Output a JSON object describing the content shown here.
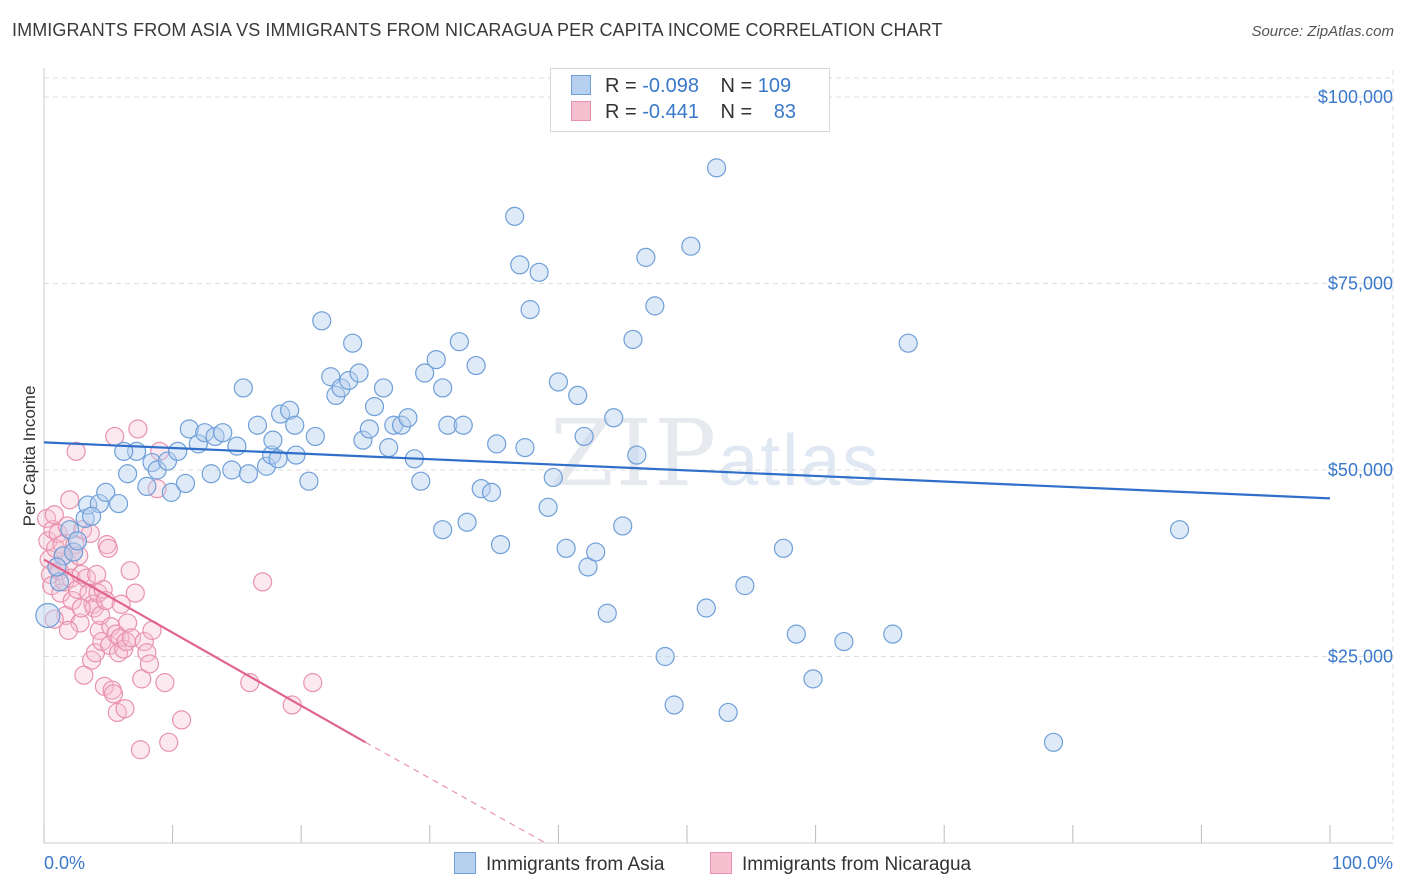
{
  "title": "IMMIGRANTS FROM ASIA VS IMMIGRANTS FROM NICARAGUA PER CAPITA INCOME CORRELATION CHART",
  "source": "Source: ZipAtlas.com",
  "watermark": {
    "zip": "ZIP",
    "atlas": "atlas"
  },
  "legend": {
    "asia": {
      "r_label": "R = ",
      "r_value": "-0.098",
      "n_label": "N = ",
      "n_value": "109"
    },
    "nicaragua": {
      "r_label": "R = ",
      "r_value": "-0.441",
      "n_label": "N = ",
      "n_value": "83"
    }
  },
  "bottom_legend": {
    "asia": "Immigrants from Asia",
    "nicaragua": "Immigrants from Nicaragua"
  },
  "colors": {
    "asia_fill": "#b7d0f0",
    "asia_stroke": "#6f9fd8",
    "asia_line": "#2f6fc9",
    "nic_fill": "#f6c0d0",
    "nic_stroke": "#e892ae",
    "nic_line": "#e0648e",
    "tick_text": "#3a78c9",
    "grid": "#dddddd"
  },
  "chart_data": {
    "type": "scatter",
    "ylabel": "Per Capita Income",
    "xlim": [
      0,
      100
    ],
    "ylim": [
      0,
      105000
    ],
    "x_tick_labels": [
      "0.0%",
      "100.0%"
    ],
    "y_ticks": [
      25000,
      50000,
      75000,
      100000
    ],
    "y_tick_labels": [
      "$25,000",
      "$50,000",
      "$75,000",
      "$100,000"
    ],
    "grid": true,
    "legend_placement": "top-center",
    "series": [
      {
        "name": "Immigrants from Asia",
        "r": -0.098,
        "n": 109,
        "trend": {
          "x": [
            0,
            100
          ],
          "y": [
            53700,
            46200
          ]
        },
        "points": [
          [
            0.3,
            30500
          ],
          [
            1.2,
            35000
          ],
          [
            1.5,
            38500
          ],
          [
            2.0,
            42000
          ],
          [
            2.3,
            39000
          ],
          [
            3.2,
            43500
          ],
          [
            3.4,
            45300
          ],
          [
            4.3,
            45500
          ],
          [
            4.8,
            47000
          ],
          [
            5.8,
            45500
          ],
          [
            6.5,
            49500
          ],
          [
            7.2,
            52500
          ],
          [
            8.0,
            47800
          ],
          [
            8.4,
            51000
          ],
          [
            8.8,
            50000
          ],
          [
            9.6,
            51200
          ],
          [
            9.9,
            47000
          ],
          [
            10.4,
            52500
          ],
          [
            11.0,
            48200
          ],
          [
            11.3,
            55500
          ],
          [
            12.0,
            53500
          ],
          [
            12.5,
            55000
          ],
          [
            13.0,
            49500
          ],
          [
            13.3,
            54500
          ],
          [
            13.9,
            55000
          ],
          [
            14.6,
            50000
          ],
          [
            15.0,
            53200
          ],
          [
            15.5,
            61000
          ],
          [
            15.9,
            49500
          ],
          [
            16.6,
            56000
          ],
          [
            17.3,
            50500
          ],
          [
            17.7,
            52000
          ],
          [
            17.8,
            54000
          ],
          [
            18.4,
            57500
          ],
          [
            19.1,
            58000
          ],
          [
            19.5,
            56000
          ],
          [
            19.6,
            52000
          ],
          [
            20.6,
            48500
          ],
          [
            21.1,
            54500
          ],
          [
            21.6,
            70000
          ],
          [
            22.3,
            62500
          ],
          [
            22.7,
            60000
          ],
          [
            23.1,
            61000
          ],
          [
            23.7,
            62000
          ],
          [
            24.0,
            67000
          ],
          [
            24.5,
            63000
          ],
          [
            24.8,
            54000
          ],
          [
            25.3,
            55500
          ],
          [
            25.7,
            58500
          ],
          [
            26.4,
            61000
          ],
          [
            26.8,
            53000
          ],
          [
            27.2,
            56000
          ],
          [
            27.8,
            56000
          ],
          [
            28.3,
            57000
          ],
          [
            28.8,
            51500
          ],
          [
            29.3,
            48500
          ],
          [
            29.6,
            63000
          ],
          [
            30.5,
            64800
          ],
          [
            31.0,
            61000
          ],
          [
            31.4,
            56000
          ],
          [
            31.0,
            42000
          ],
          [
            32.3,
            67200
          ],
          [
            32.6,
            56000
          ],
          [
            32.9,
            43000
          ],
          [
            33.6,
            64000
          ],
          [
            34.0,
            47500
          ],
          [
            34.8,
            47000
          ],
          [
            35.2,
            53500
          ],
          [
            35.5,
            40000
          ],
          [
            36.6,
            84000
          ],
          [
            37.0,
            77500
          ],
          [
            37.4,
            53000
          ],
          [
            37.8,
            71500
          ],
          [
            38.5,
            76500
          ],
          [
            39.2,
            45000
          ],
          [
            39.6,
            49000
          ],
          [
            40.0,
            61800
          ],
          [
            40.6,
            39500
          ],
          [
            41.5,
            60000
          ],
          [
            42.0,
            54500
          ],
          [
            42.3,
            37000
          ],
          [
            42.9,
            39000
          ],
          [
            43.8,
            30800
          ],
          [
            44.3,
            57000
          ],
          [
            45.0,
            42500
          ],
          [
            45.8,
            67500
          ],
          [
            46.1,
            52000
          ],
          [
            46.8,
            78500
          ],
          [
            47.5,
            72000
          ],
          [
            48.3,
            25000
          ],
          [
            49.0,
            18500
          ],
          [
            50.3,
            80000
          ],
          [
            51.5,
            31500
          ],
          [
            52.3,
            90500
          ],
          [
            53.2,
            17500
          ],
          [
            54.5,
            34500
          ],
          [
            57.5,
            39500
          ],
          [
            58.5,
            28000
          ],
          [
            59.8,
            22000
          ],
          [
            62.2,
            27000
          ],
          [
            66.0,
            28000
          ],
          [
            67.2,
            67000
          ],
          [
            78.5,
            13500
          ],
          [
            88.3,
            42000
          ],
          [
            1.0,
            37000
          ],
          [
            2.6,
            40500
          ],
          [
            3.7,
            43800
          ],
          [
            6.2,
            52500
          ],
          [
            18.2,
            51500
          ]
        ]
      },
      {
        "name": "Immigrants from Nicaragua",
        "r": -0.441,
        "n": 83,
        "trend": {
          "x": [
            0,
            25
          ],
          "y": [
            38000,
            13500
          ]
        },
        "trend_dashed": {
          "x": [
            25,
            39
          ],
          "y": [
            13500,
            0
          ]
        },
        "points": [
          [
            0.2,
            43500
          ],
          [
            0.3,
            40500
          ],
          [
            0.4,
            38000
          ],
          [
            0.5,
            36000
          ],
          [
            0.6,
            34500
          ],
          [
            0.7,
            42000
          ],
          [
            0.8,
            44000
          ],
          [
            0.9,
            39500
          ],
          [
            1.0,
            37000
          ],
          [
            1.1,
            41500
          ],
          [
            1.2,
            36500
          ],
          [
            1.3,
            33500
          ],
          [
            1.4,
            40000
          ],
          [
            1.5,
            38500
          ],
          [
            1.6,
            35000
          ],
          [
            1.7,
            30500
          ],
          [
            1.8,
            42500
          ],
          [
            1.9,
            37500
          ],
          [
            2.0,
            46000
          ],
          [
            2.1,
            35500
          ],
          [
            2.2,
            32500
          ],
          [
            2.3,
            39000
          ],
          [
            2.4,
            40000
          ],
          [
            2.5,
            52500
          ],
          [
            2.6,
            34000
          ],
          [
            2.7,
            38500
          ],
          [
            2.8,
            29500
          ],
          [
            2.9,
            36000
          ],
          [
            3.0,
            42000
          ],
          [
            3.1,
            22500
          ],
          [
            3.3,
            35500
          ],
          [
            3.5,
            33500
          ],
          [
            3.7,
            24500
          ],
          [
            3.8,
            32000
          ],
          [
            3.9,
            31500
          ],
          [
            4.0,
            25500
          ],
          [
            4.2,
            33500
          ],
          [
            4.3,
            28500
          ],
          [
            4.4,
            30500
          ],
          [
            4.5,
            27000
          ],
          [
            4.6,
            34000
          ],
          [
            4.7,
            21000
          ],
          [
            4.8,
            32500
          ],
          [
            4.9,
            40000
          ],
          [
            5.0,
            39500
          ],
          [
            5.1,
            26500
          ],
          [
            5.2,
            29000
          ],
          [
            5.3,
            20500
          ],
          [
            5.4,
            20000
          ],
          [
            5.5,
            54500
          ],
          [
            5.6,
            28000
          ],
          [
            5.7,
            17500
          ],
          [
            5.8,
            25500
          ],
          [
            5.9,
            27500
          ],
          [
            6.0,
            32000
          ],
          [
            6.2,
            26000
          ],
          [
            6.3,
            18000
          ],
          [
            6.4,
            27000
          ],
          [
            6.5,
            29500
          ],
          [
            6.7,
            36500
          ],
          [
            6.8,
            27500
          ],
          [
            7.1,
            33500
          ],
          [
            7.3,
            55500
          ],
          [
            7.5,
            12500
          ],
          [
            7.6,
            22000
          ],
          [
            7.8,
            27000
          ],
          [
            8.0,
            25500
          ],
          [
            8.2,
            24000
          ],
          [
            8.4,
            28500
          ],
          [
            8.8,
            47500
          ],
          [
            9.0,
            52500
          ],
          [
            9.4,
            21500
          ],
          [
            9.7,
            13500
          ],
          [
            10.7,
            16500
          ],
          [
            16.0,
            21500
          ],
          [
            17.0,
            35000
          ],
          [
            19.3,
            18500
          ],
          [
            20.9,
            21500
          ],
          [
            3.6,
            41500
          ],
          [
            1.9,
            28500
          ],
          [
            4.1,
            36000
          ],
          [
            2.9,
            31500
          ],
          [
            0.8,
            30000
          ]
        ]
      }
    ]
  }
}
